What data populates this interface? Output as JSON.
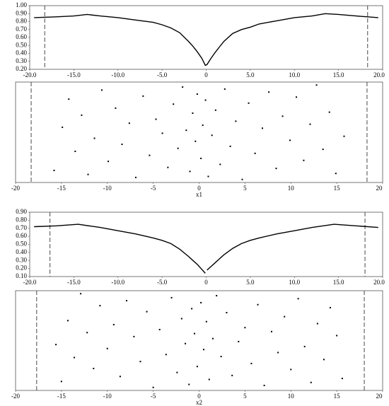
{
  "chart_data": [
    {
      "type": "line",
      "xlim": [
        -20,
        20
      ],
      "ylim": [
        0.2,
        1.0
      ],
      "xticks": [
        {
          "value": -20,
          "label": "-20.0"
        },
        {
          "value": -15,
          "label": "-15.0"
        },
        {
          "value": -10,
          "label": "-10.0"
        },
        {
          "value": -5,
          "label": "-5.0"
        },
        {
          "value": 0,
          "label": "0"
        },
        {
          "value": 5,
          "label": "5.0"
        },
        {
          "value": 10,
          "label": "10.0"
        },
        {
          "value": 15,
          "label": "15.0"
        },
        {
          "value": 20,
          "label": "20.0"
        }
      ],
      "yticks": [
        {
          "value": 0.2,
          "label": "0.20"
        },
        {
          "value": 0.3,
          "label": "0.30"
        },
        {
          "value": 0.4,
          "label": "0.40"
        },
        {
          "value": 0.5,
          "label": "0.50"
        },
        {
          "value": 0.6,
          "label": "0.60"
        },
        {
          "value": 0.7,
          "label": "0.70"
        },
        {
          "value": 0.8,
          "label": "0.80"
        },
        {
          "value": 0.9,
          "label": "0.90"
        },
        {
          "value": 1.0,
          "label": "1.00"
        }
      ],
      "vlines": [
        -18.3,
        18.3
      ],
      "color": "#000000",
      "x": [
        -19.5,
        -17,
        -15,
        -13.5,
        -12,
        -10,
        -8,
        -6,
        -5,
        -4,
        -3,
        -2,
        -1.5,
        -1,
        -0.5,
        -0.1,
        0.1,
        0.5,
        1,
        1.5,
        2,
        3,
        4,
        5,
        6,
        8,
        10,
        12,
        13.5,
        15,
        17,
        19.5
      ],
      "values": [
        0.85,
        0.86,
        0.87,
        0.89,
        0.87,
        0.85,
        0.82,
        0.79,
        0.76,
        0.72,
        0.66,
        0.55,
        0.49,
        0.42,
        0.34,
        0.25,
        0.26,
        0.33,
        0.41,
        0.48,
        0.55,
        0.65,
        0.7,
        0.73,
        0.77,
        0.81,
        0.85,
        0.87,
        0.9,
        0.89,
        0.87,
        0.85
      ]
    },
    {
      "type": "scatter",
      "xlim": [
        -20,
        20
      ],
      "ylim": [
        0,
        1
      ],
      "xlabel": "x1",
      "xticks": [
        -20,
        -15,
        -10,
        -5,
        0,
        5,
        10,
        15,
        20
      ],
      "vlines": [
        -18.3,
        18.3
      ],
      "color": "#000000",
      "x": [
        -15.8,
        -14.9,
        -14.2,
        -13.5,
        -12.8,
        -12.1,
        -11.4,
        -10.6,
        -9.9,
        -9.1,
        -8.4,
        -7.6,
        -6.9,
        -6.1,
        -5.4,
        -4.7,
        -4.0,
        -3.4,
        -2.8,
        -2.3,
        -1.8,
        -1.4,
        -1.0,
        -0.7,
        -0.4,
        -0.2,
        0.2,
        0.4,
        0.7,
        1.0,
        1.4,
        1.8,
        2.3,
        2.8,
        3.4,
        4.0,
        4.7,
        5.4,
        6.1,
        6.9,
        7.6,
        8.4,
        9.1,
        9.9,
        10.6,
        11.4,
        12.1,
        12.8,
        13.5,
        14.2,
        14.9,
        15.8
      ],
      "y": [
        0.12,
        0.55,
        0.83,
        0.31,
        0.67,
        0.08,
        0.44,
        0.92,
        0.21,
        0.74,
        0.38,
        0.59,
        0.05,
        0.86,
        0.27,
        0.63,
        0.49,
        0.15,
        0.78,
        0.34,
        0.95,
        0.52,
        0.11,
        0.69,
        0.41,
        0.88,
        0.24,
        0.57,
        0.82,
        0.06,
        0.47,
        0.72,
        0.18,
        0.93,
        0.36,
        0.61,
        0.03,
        0.79,
        0.29,
        0.54,
        0.9,
        0.14,
        0.66,
        0.42,
        0.85,
        0.22,
        0.58,
        0.97,
        0.33,
        0.7,
        0.09,
        0.46
      ]
    },
    {
      "type": "line",
      "xlim": [
        -20,
        20
      ],
      "ylim": [
        0.1,
        0.9
      ],
      "xticks": [
        {
          "value": -20,
          "label": "-20.0"
        },
        {
          "value": -15,
          "label": "-15.0"
        },
        {
          "value": -10,
          "label": "-10.0"
        },
        {
          "value": -5,
          "label": "-5.0"
        },
        {
          "value": 0,
          "label": "0"
        },
        {
          "value": 5,
          "label": "5.0"
        },
        {
          "value": 10,
          "label": "10.0"
        },
        {
          "value": 15,
          "label": "15.0"
        },
        {
          "value": 20,
          "label": "20.0"
        }
      ],
      "yticks": [
        {
          "value": 0.1,
          "label": "0.10"
        },
        {
          "value": 0.2,
          "label": "0.20"
        },
        {
          "value": 0.3,
          "label": "0.30"
        },
        {
          "value": 0.4,
          "label": "0.40"
        },
        {
          "value": 0.5,
          "label": "0.50"
        },
        {
          "value": 0.6,
          "label": "0.60"
        },
        {
          "value": 0.7,
          "label": "0.70"
        },
        {
          "value": 0.8,
          "label": "0.80"
        },
        {
          "value": 0.9,
          "label": "0.90"
        }
      ],
      "vlines": [
        -17.7,
        18.0
      ],
      "color": "#000000",
      "x": [
        -19.5,
        -17,
        -14.5,
        -12,
        -10,
        -8,
        -6,
        -5,
        -4,
        -3,
        -2,
        -1.5,
        -1,
        -0.5,
        -0.1,
        0,
        0.1,
        0.5,
        1,
        1.5,
        2,
        3,
        4,
        5,
        6,
        8,
        10,
        12,
        14.5,
        17,
        19.5
      ],
      "values": [
        0.72,
        0.73,
        0.75,
        0.71,
        0.67,
        0.63,
        0.58,
        0.55,
        0.51,
        0.44,
        0.35,
        0.3,
        0.25,
        0.19,
        0.14,
        null,
        0.18,
        0.22,
        0.27,
        0.32,
        0.37,
        0.45,
        0.51,
        0.55,
        0.58,
        0.63,
        0.67,
        0.71,
        0.75,
        0.73,
        0.71
      ]
    },
    {
      "type": "scatter",
      "xlim": [
        -20,
        20
      ],
      "ylim": [
        0,
        1
      ],
      "xlabel": "x2",
      "xticks": [
        -20,
        -15,
        -10,
        -5,
        0,
        5,
        10,
        15,
        20
      ],
      "vlines": [
        -17.7,
        18.0
      ],
      "color": "#000000",
      "x": [
        -15.6,
        -15.0,
        -14.3,
        -13.6,
        -12.9,
        -12.2,
        -11.5,
        -10.8,
        -10.0,
        -9.3,
        -8.6,
        -7.9,
        -7.1,
        -6.4,
        -5.7,
        -5.0,
        -4.3,
        -3.6,
        -3.0,
        -2.4,
        -1.9,
        -1.5,
        -1.1,
        -0.8,
        -0.5,
        -0.2,
        0.2,
        0.5,
        0.8,
        1.1,
        1.5,
        1.9,
        2.4,
        3.0,
        3.6,
        4.3,
        5.0,
        5.7,
        6.4,
        7.1,
        7.9,
        8.6,
        9.3,
        10.0,
        10.8,
        11.5,
        12.2,
        12.9,
        13.6,
        14.3,
        15.0,
        15.6
      ],
      "y": [
        0.46,
        0.09,
        0.7,
        0.33,
        0.97,
        0.58,
        0.22,
        0.85,
        0.42,
        0.66,
        0.14,
        0.9,
        0.54,
        0.29,
        0.79,
        0.03,
        0.61,
        0.36,
        0.93,
        0.18,
        0.72,
        0.47,
        0.06,
        0.82,
        0.57,
        0.24,
        0.88,
        0.41,
        0.69,
        0.11,
        0.52,
        0.95,
        0.34,
        0.78,
        0.15,
        0.49,
        0.63,
        0.27,
        0.86,
        0.05,
        0.59,
        0.38,
        0.74,
        0.21,
        0.92,
        0.44,
        0.08,
        0.67,
        0.31,
        0.83,
        0.55,
        0.12
      ]
    }
  ]
}
